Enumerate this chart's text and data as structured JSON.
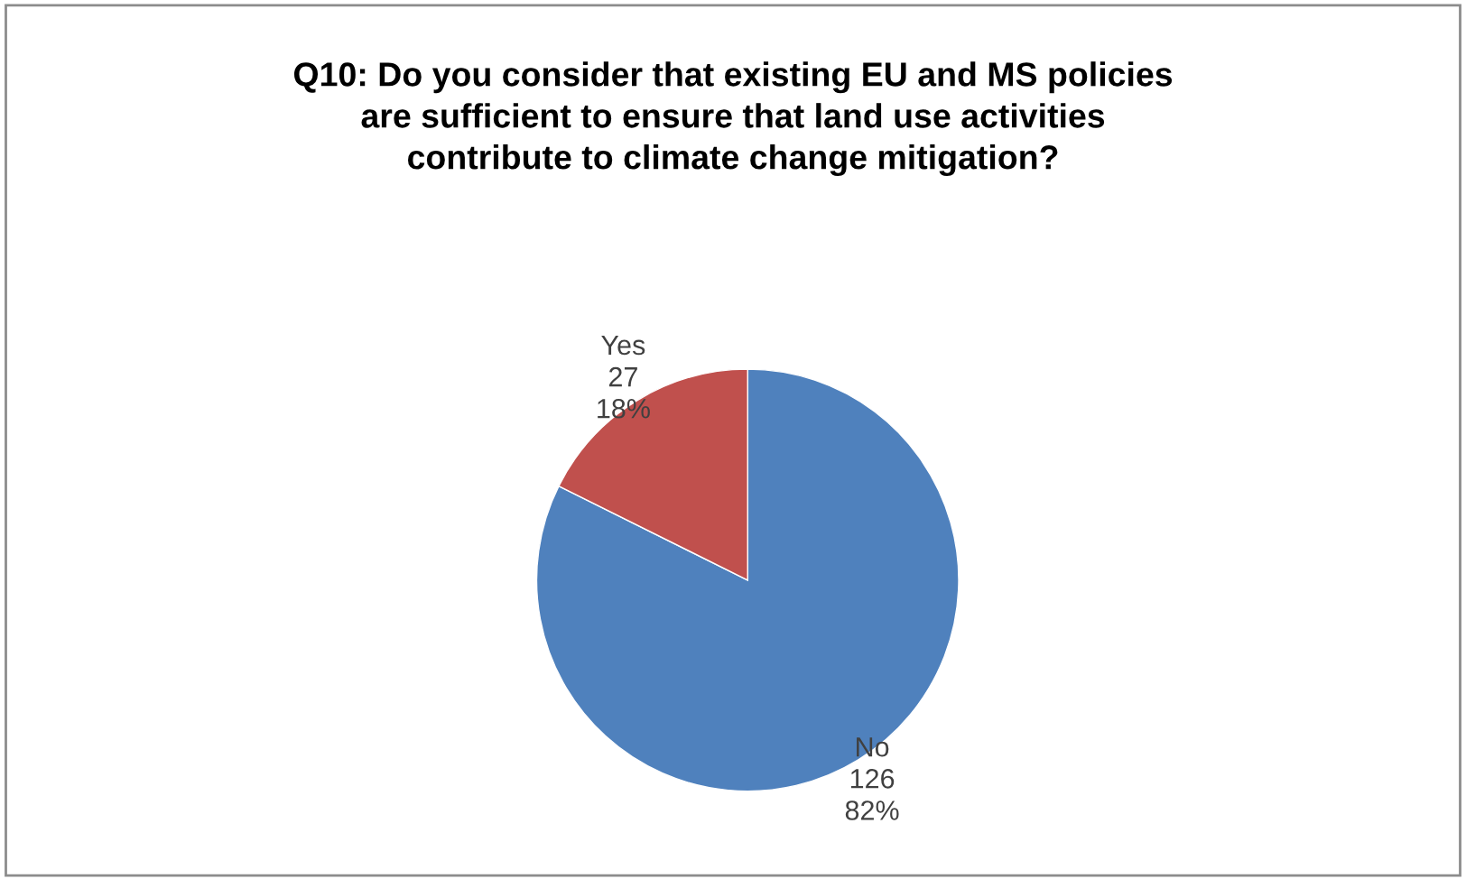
{
  "chart_data": {
    "type": "pie",
    "title": "Q10: Do you consider that existing EU and MS policies\nare sufficient to ensure that land use activities\ncontribute to climate change mitigation?",
    "categories": [
      "No",
      "Yes"
    ],
    "values": [
      126,
      27
    ],
    "value_labels": [
      "126\n82%",
      "27\n18%"
    ],
    "colors": [
      "#4f81bd",
      "#c0504d"
    ],
    "legend": false
  }
}
